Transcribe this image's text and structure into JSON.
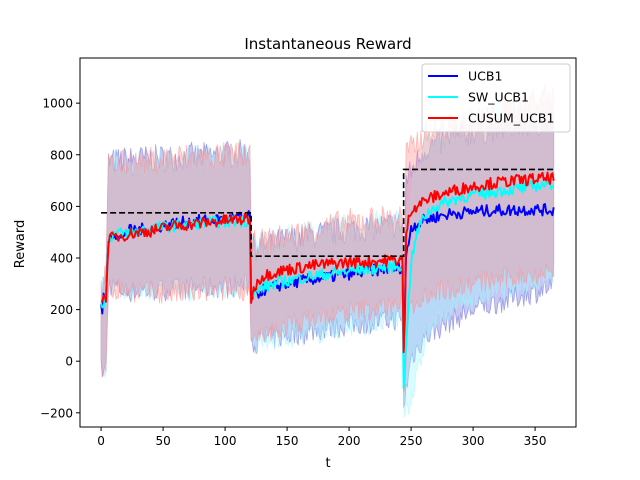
{
  "chart_data": {
    "type": "line",
    "title": "Instantaneous Reward",
    "xlabel": "t",
    "ylabel": "Reward",
    "xlim": [
      -17,
      383
    ],
    "ylim": [
      -255,
      1175
    ],
    "xticks": [
      0,
      50,
      100,
      150,
      200,
      250,
      300,
      350
    ],
    "yticks": [
      -200,
      0,
      200,
      400,
      600,
      800,
      1000
    ],
    "ytick_labels": [
      "−200",
      "0",
      "200",
      "400",
      "600",
      "800",
      "1000"
    ],
    "legend_position": "upper right",
    "grid": false,
    "optimal_reward": {
      "style": "dashed",
      "color": "#000000",
      "segments": [
        {
          "x": [
            0,
            121
          ],
          "y": 575
        },
        {
          "x": [
            121,
            244
          ],
          "y": 407
        },
        {
          "x": [
            244,
            365
          ],
          "y": 743
        }
      ]
    },
    "series": [
      {
        "name": "UCB1",
        "color": "#0000ff",
        "band_color": "#6c6cdd",
        "points": [
          [
            0,
            210
          ],
          [
            1,
            200
          ],
          [
            2,
            240
          ],
          [
            3,
            245
          ],
          [
            4,
            250
          ],
          [
            6,
            480
          ],
          [
            10,
            500
          ],
          [
            15,
            470
          ],
          [
            20,
            505
          ],
          [
            30,
            510
          ],
          [
            40,
            515
          ],
          [
            50,
            525
          ],
          [
            60,
            535
          ],
          [
            70,
            540
          ],
          [
            80,
            545
          ],
          [
            90,
            548
          ],
          [
            100,
            550
          ],
          [
            110,
            555
          ],
          [
            120,
            560
          ],
          [
            121,
            255
          ],
          [
            125,
            260
          ],
          [
            130,
            275
          ],
          [
            140,
            290
          ],
          [
            150,
            300
          ],
          [
            160,
            310
          ],
          [
            170,
            318
          ],
          [
            180,
            324
          ],
          [
            190,
            330
          ],
          [
            200,
            338
          ],
          [
            210,
            345
          ],
          [
            220,
            352
          ],
          [
            230,
            358
          ],
          [
            240,
            362
          ],
          [
            243,
            365
          ],
          [
            244,
            45
          ],
          [
            246,
            400
          ],
          [
            250,
            520
          ],
          [
            260,
            545
          ],
          [
            270,
            560
          ],
          [
            280,
            570
          ],
          [
            290,
            575
          ],
          [
            300,
            580
          ],
          [
            310,
            582
          ],
          [
            320,
            585
          ],
          [
            330,
            585
          ],
          [
            340,
            587
          ],
          [
            350,
            588
          ],
          [
            365,
            585
          ]
        ],
        "band_lower": [
          [
            0,
            -30
          ],
          [
            2,
            -40
          ],
          [
            4,
            -45
          ],
          [
            6,
            300
          ],
          [
            20,
            270
          ],
          [
            60,
            280
          ],
          [
            100,
            290
          ],
          [
            120,
            300
          ],
          [
            121,
            70
          ],
          [
            150,
            100
          ],
          [
            200,
            140
          ],
          [
            243,
            165
          ],
          [
            244,
            -170
          ],
          [
            250,
            10
          ],
          [
            260,
            90
          ],
          [
            280,
            150
          ],
          [
            300,
            200
          ],
          [
            330,
            240
          ],
          [
            365,
            290
          ]
        ],
        "band_upper": [
          [
            0,
            280
          ],
          [
            2,
            300
          ],
          [
            4,
            340
          ],
          [
            6,
            770
          ],
          [
            20,
            780
          ],
          [
            60,
            790
          ],
          [
            100,
            800
          ],
          [
            120,
            810
          ],
          [
            121,
            440
          ],
          [
            150,
            470
          ],
          [
            200,
            510
          ],
          [
            243,
            530
          ],
          [
            244,
            260
          ],
          [
            246,
            700
          ],
          [
            260,
            820
          ],
          [
            280,
            860
          ],
          [
            300,
            890
          ],
          [
            330,
            910
          ],
          [
            365,
            930
          ]
        ]
      },
      {
        "name": "SW_UCB1",
        "color": "#00ffff",
        "band_color": "#9ff7ff",
        "points": [
          [
            0,
            220
          ],
          [
            2,
            230
          ],
          [
            4,
            250
          ],
          [
            6,
            470
          ],
          [
            10,
            495
          ],
          [
            20,
            495
          ],
          [
            30,
            505
          ],
          [
            40,
            512
          ],
          [
            50,
            520
          ],
          [
            60,
            525
          ],
          [
            70,
            530
          ],
          [
            80,
            535
          ],
          [
            90,
            538
          ],
          [
            100,
            540
          ],
          [
            110,
            543
          ],
          [
            120,
            545
          ],
          [
            121,
            255
          ],
          [
            125,
            265
          ],
          [
            130,
            285
          ],
          [
            140,
            300
          ],
          [
            150,
            312
          ],
          [
            160,
            322
          ],
          [
            170,
            330
          ],
          [
            180,
            336
          ],
          [
            190,
            342
          ],
          [
            200,
            348
          ],
          [
            210,
            355
          ],
          [
            220,
            360
          ],
          [
            230,
            365
          ],
          [
            240,
            370
          ],
          [
            243,
            372
          ],
          [
            244,
            -120
          ],
          [
            246,
            80
          ],
          [
            250,
            380
          ],
          [
            255,
            500
          ],
          [
            260,
            560
          ],
          [
            270,
            600
          ],
          [
            280,
            620
          ],
          [
            290,
            635
          ],
          [
            300,
            645
          ],
          [
            310,
            650
          ],
          [
            320,
            660
          ],
          [
            330,
            665
          ],
          [
            340,
            670
          ],
          [
            350,
            680
          ],
          [
            365,
            690
          ]
        ],
        "band_lower": [
          [
            0,
            -20
          ],
          [
            4,
            -40
          ],
          [
            6,
            290
          ],
          [
            60,
            270
          ],
          [
            120,
            290
          ],
          [
            121,
            60
          ],
          [
            150,
            90
          ],
          [
            200,
            130
          ],
          [
            243,
            160
          ],
          [
            244,
            -190
          ],
          [
            250,
            -150
          ],
          [
            256,
            -40
          ],
          [
            262,
            100
          ],
          [
            280,
            200
          ],
          [
            300,
            240
          ],
          [
            365,
            330
          ]
        ],
        "band_upper": [
          [
            0,
            270
          ],
          [
            4,
            330
          ],
          [
            6,
            760
          ],
          [
            60,
            780
          ],
          [
            120,
            790
          ],
          [
            121,
            450
          ],
          [
            200,
            520
          ],
          [
            243,
            540
          ],
          [
            244,
            200
          ],
          [
            250,
            650
          ],
          [
            260,
            830
          ],
          [
            300,
            940
          ],
          [
            365,
            1010
          ]
        ]
      },
      {
        "name": "CUSUM_UCB1",
        "color": "#ff0000",
        "band_color": "#ff8f8f",
        "points": [
          [
            0,
            240
          ],
          [
            2,
            240
          ],
          [
            4,
            250
          ],
          [
            6,
            470
          ],
          [
            10,
            480
          ],
          [
            20,
            490
          ],
          [
            30,
            500
          ],
          [
            40,
            505
          ],
          [
            50,
            515
          ],
          [
            60,
            525
          ],
          [
            70,
            530
          ],
          [
            80,
            535
          ],
          [
            90,
            540
          ],
          [
            100,
            545
          ],
          [
            110,
            548
          ],
          [
            120,
            550
          ],
          [
            121,
            240
          ],
          [
            123,
            270
          ],
          [
            125,
            300
          ],
          [
            130,
            330
          ],
          [
            140,
            345
          ],
          [
            150,
            355
          ],
          [
            160,
            362
          ],
          [
            170,
            370
          ],
          [
            180,
            375
          ],
          [
            190,
            380
          ],
          [
            200,
            383
          ],
          [
            210,
            385
          ],
          [
            220,
            388
          ],
          [
            230,
            390
          ],
          [
            240,
            392
          ],
          [
            243,
            395
          ],
          [
            244,
            20
          ],
          [
            245,
            150
          ],
          [
            246,
            500
          ],
          [
            250,
            590
          ],
          [
            260,
            620
          ],
          [
            270,
            640
          ],
          [
            280,
            655
          ],
          [
            290,
            668
          ],
          [
            300,
            678
          ],
          [
            310,
            686
          ],
          [
            320,
            692
          ],
          [
            330,
            698
          ],
          [
            340,
            702
          ],
          [
            350,
            706
          ],
          [
            365,
            710
          ]
        ],
        "band_lower": [
          [
            0,
            -20
          ],
          [
            4,
            -40
          ],
          [
            6,
            280
          ],
          [
            60,
            260
          ],
          [
            120,
            280
          ],
          [
            121,
            70
          ],
          [
            150,
            140
          ],
          [
            200,
            190
          ],
          [
            243,
            220
          ],
          [
            244,
            -160
          ],
          [
            248,
            200
          ],
          [
            260,
            260
          ],
          [
            300,
            300
          ],
          [
            365,
            350
          ]
        ],
        "band_upper": [
          [
            0,
            280
          ],
          [
            4,
            340
          ],
          [
            6,
            760
          ],
          [
            60,
            790
          ],
          [
            120,
            800
          ],
          [
            121,
            450
          ],
          [
            200,
            540
          ],
          [
            243,
            560
          ],
          [
            244,
            280
          ],
          [
            246,
            800
          ],
          [
            260,
            880
          ],
          [
            300,
            930
          ],
          [
            365,
            1040
          ]
        ]
      }
    ]
  }
}
